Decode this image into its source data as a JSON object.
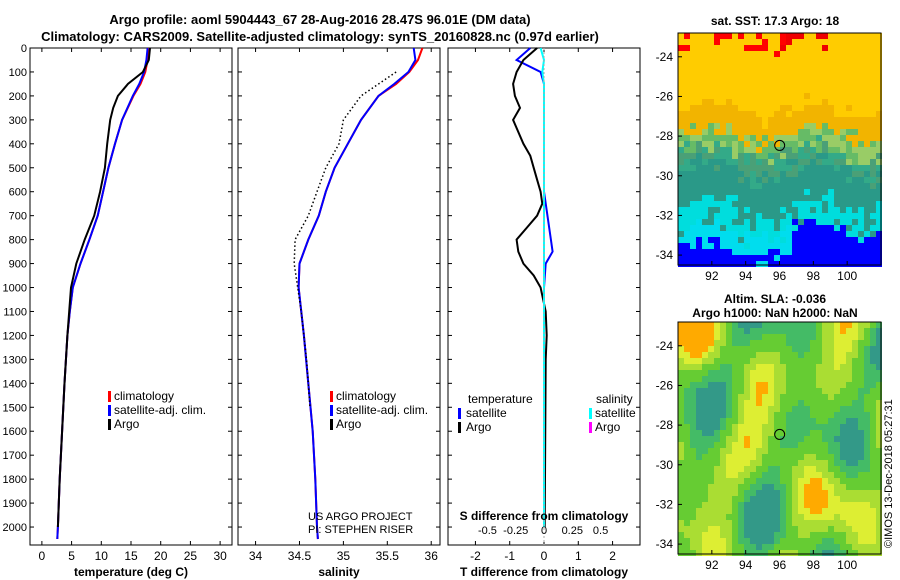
{
  "header": {
    "title1": "Argo profile: aoml 5904443_67 28-Aug-2016 28.47S 96.01E (DM data)",
    "title2": "Climatology: CARS2009. Satellite-adjusted climatology: synTS_20160828.nc (0.97d earlier)",
    "map1_title": "sat. SST: 17.3 Argo: 18",
    "map2_title1": "Altim. SLA: -0.036",
    "map2_title2": "Argo h1000: NaN h2000: NaN"
  },
  "credits": {
    "line1": "US ARGO PROJECT",
    "line2": "PI: STEPHEN RISER",
    "imos": "©IMOS 13-Dec-2018 05:27:31"
  },
  "colors": {
    "climatology": "#ff0000",
    "satellite": "#0000ff",
    "argo": "#000000",
    "satellite_s": "#00ffff",
    "argo_s": "#ff00ff"
  },
  "chart_data": [
    {
      "type": "line",
      "xlabel": "temperature (deg C)",
      "ylabel": "",
      "xlim": [
        -2,
        32
      ],
      "ylim": [
        2075,
        0
      ],
      "xticks": [
        0,
        5,
        10,
        15,
        20,
        25,
        30
      ],
      "yticks": [
        0,
        100,
        200,
        300,
        400,
        500,
        600,
        700,
        800,
        900,
        1000,
        1100,
        1200,
        1300,
        1400,
        1500,
        1600,
        1700,
        1800,
        1900,
        2000
      ],
      "legend": [
        "climatology",
        "satellite-adj. clim.",
        "Argo"
      ],
      "series": [
        {
          "name": "climatology",
          "depth": [
            0,
            50,
            100,
            150,
            200,
            300,
            400,
            500,
            600,
            700,
            800,
            900,
            1000,
            1100,
            1200,
            1400,
            1600,
            1800,
            2000,
            2050
          ],
          "values": [
            18.0,
            17.8,
            17.4,
            16.6,
            15.4,
            13.5,
            12.3,
            11.2,
            10.3,
            9.4,
            8.0,
            6.5,
            5.2,
            4.7,
            4.3,
            3.8,
            3.4,
            3.0,
            2.7,
            2.6
          ]
        },
        {
          "name": "satellite-adj. clim.",
          "depth": [
            0,
            50,
            100,
            150,
            200,
            300,
            400,
            500,
            600,
            700,
            800,
            900,
            1000,
            1100,
            1200,
            1400,
            1600,
            1800,
            2000,
            2050
          ],
          "values": [
            17.8,
            17.6,
            17.2,
            16.4,
            15.3,
            13.5,
            12.3,
            11.2,
            10.3,
            9.4,
            8.0,
            6.5,
            5.2,
            4.7,
            4.3,
            3.8,
            3.4,
            3.0,
            2.7,
            2.6
          ]
        },
        {
          "name": "Argo",
          "depth": [
            0,
            50,
            100,
            150,
            200,
            250,
            300,
            400,
            500,
            600,
            700,
            800,
            900,
            1000,
            1100,
            1200,
            1400,
            1600,
            1800,
            2000
          ],
          "values": [
            18.2,
            18.0,
            17.0,
            14.5,
            12.8,
            12.0,
            11.5,
            11.0,
            10.6,
            9.8,
            8.8,
            7.2,
            5.8,
            4.9,
            4.6,
            4.3,
            3.8,
            3.4,
            3.0,
            2.7
          ]
        }
      ]
    },
    {
      "type": "line",
      "xlabel": "salinity",
      "xlim": [
        33.8,
        36.1
      ],
      "ylim": [
        2075,
        0
      ],
      "xticks": [
        34,
        34.5,
        35,
        35.5,
        36
      ],
      "legend": [
        "climatology",
        "satellite-adj. clim.",
        "Argo"
      ],
      "series": [
        {
          "name": "climatology",
          "depth": [
            0,
            50,
            100,
            150,
            200,
            300,
            400,
            500,
            600,
            700,
            800,
            900,
            1000,
            1200,
            1400,
            1600,
            1800,
            2000,
            2050
          ],
          "values": [
            35.9,
            35.85,
            35.75,
            35.6,
            35.4,
            35.2,
            35.05,
            34.9,
            34.8,
            34.72,
            34.6,
            34.5,
            34.49,
            34.55,
            34.6,
            34.65,
            34.68,
            34.7,
            34.71
          ]
        },
        {
          "name": "satellite-adj. clim.",
          "depth": [
            0,
            50,
            100,
            150,
            200,
            300,
            400,
            500,
            600,
            700,
            800,
            900,
            1000,
            1200,
            1400,
            1600,
            1800,
            2000,
            2050
          ],
          "values": [
            35.8,
            35.82,
            35.74,
            35.58,
            35.4,
            35.2,
            35.05,
            34.9,
            34.8,
            34.72,
            34.6,
            34.5,
            34.49,
            34.55,
            34.6,
            34.65,
            34.68,
            34.7,
            34.71
          ]
        },
        {
          "name": "Argo",
          "depth": [
            100,
            200,
            300,
            400,
            500,
            600,
            700,
            800,
            900,
            1000,
            1100,
            1200,
            1300,
            1400,
            1500
          ],
          "values": [
            35.6,
            35.2,
            35.0,
            34.95,
            34.8,
            34.7,
            34.6,
            34.45,
            34.44,
            34.48,
            34.52,
            34.55,
            34.58,
            34.6,
            34.62
          ]
        }
      ]
    },
    {
      "type": "line",
      "xlabel": "T difference from climatology",
      "xlabel2": "S difference from climatology",
      "xlim": [
        -2.8,
        2.8
      ],
      "ylim": [
        2075,
        0
      ],
      "xticks": [
        -2,
        -1,
        0,
        1,
        2
      ],
      "xticks2": [
        "-0.5",
        "-0.25",
        "0",
        "0.25",
        "0.5"
      ],
      "legend_left_title": "temperature",
      "legend_right_title": "salinity",
      "legend_left": [
        "satellite",
        "Argo"
      ],
      "legend_right": [
        "satellite",
        "Argo"
      ],
      "series": [
        {
          "name": "temperature satellite",
          "depth": [
            0,
            50,
            100,
            150,
            200,
            400,
            600,
            800,
            850,
            900,
            1000,
            1200,
            2000
          ],
          "values": [
            -0.4,
            -0.8,
            -0.1,
            0,
            0,
            0,
            0,
            0.2,
            0.25,
            0.05,
            0,
            0,
            0
          ]
        },
        {
          "name": "temperature Argo",
          "depth": [
            0,
            50,
            100,
            150,
            200,
            250,
            300,
            400,
            450,
            500,
            550,
            600,
            650,
            700,
            750,
            800,
            850,
            900,
            950,
            1000,
            1100,
            1200,
            1300,
            2000
          ],
          "values": [
            -0.2,
            -0.6,
            -0.8,
            -0.9,
            -0.85,
            -0.7,
            -0.9,
            -0.6,
            -0.4,
            -0.3,
            -0.2,
            -0.1,
            -0.05,
            -0.2,
            -0.5,
            -0.8,
            -0.75,
            -0.6,
            -0.3,
            -0.1,
            0.05,
            0.08,
            0.05,
            0.02
          ]
        },
        {
          "name": "salinity satellite",
          "depth": [
            0,
            50,
            100,
            150,
            300,
            600,
            900,
            1200,
            1600,
            2000
          ],
          "values": [
            -0.1,
            0,
            -0.05,
            0,
            0,
            0,
            0,
            0,
            0,
            0
          ]
        }
      ]
    },
    {
      "type": "heatmap",
      "title": "sat. SST: 17.3 Argo: 18",
      "xticks": [
        92,
        94,
        96,
        98,
        100
      ],
      "yticks": [
        -24,
        -26,
        -28,
        -30,
        -32,
        -34
      ],
      "xlim": [
        90,
        102
      ],
      "ylim": [
        -34.5,
        -22.8
      ],
      "marker": {
        "lon": 96.01,
        "lat": -28.47
      }
    },
    {
      "type": "heatmap",
      "title": "Altim. SLA: -0.036",
      "xticks": [
        92,
        94,
        96,
        98,
        100
      ],
      "yticks": [
        -24,
        -26,
        -28,
        -30,
        -32,
        -34
      ],
      "xlim": [
        90,
        102
      ],
      "ylim": [
        -34.5,
        -22.8
      ],
      "marker": {
        "lon": 96.01,
        "lat": -28.47
      }
    }
  ]
}
